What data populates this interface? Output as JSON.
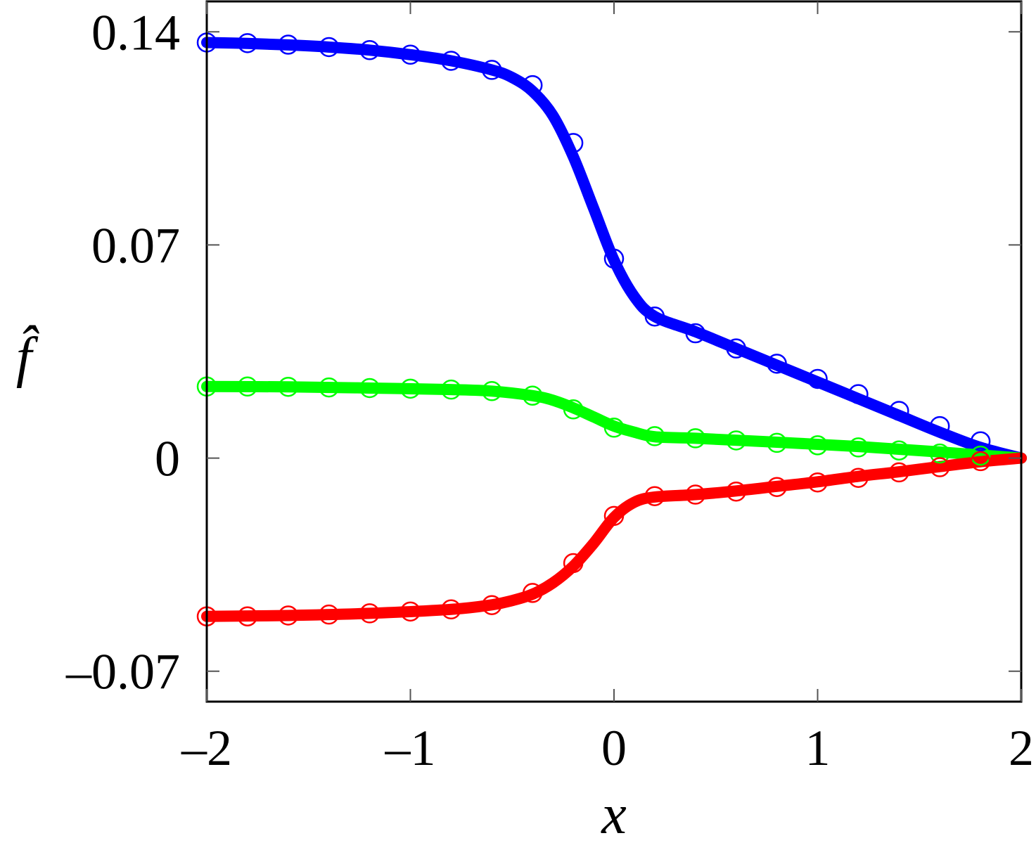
{
  "chart_data": {
    "type": "line",
    "xlabel": "x",
    "ylabel": "f̂",
    "xlim": [
      -2,
      2
    ],
    "ylim": [
      -0.08,
      0.15
    ],
    "xticks": [
      -2,
      -1,
      0,
      1,
      2
    ],
    "xtick_labels": [
      "–2",
      "–1",
      "0",
      "1",
      "2"
    ],
    "yticks": [
      -0.07,
      0,
      0.07,
      0.14
    ],
    "ytick_labels": [
      "–0.07",
      "0",
      "0.07",
      "0.14"
    ],
    "grid": false,
    "legend": "none",
    "series": [
      {
        "color": "#0000ff",
        "line_x": [
          -2.0,
          -1.8,
          -1.6,
          -1.4,
          -1.2,
          -1.0,
          -0.8,
          -0.6,
          -0.5,
          -0.4,
          -0.3,
          -0.2,
          -0.1,
          0.0,
          0.1,
          0.2,
          0.4,
          0.6,
          0.8,
          1.0,
          1.2,
          1.4,
          1.6,
          1.8,
          2.0
        ],
        "line_y": [
          0.1365,
          0.1362,
          0.1357,
          0.135,
          0.134,
          0.1325,
          0.1305,
          0.1275,
          0.125,
          0.1205,
          0.1125,
          0.099,
          0.082,
          0.065,
          0.053,
          0.0465,
          0.0415,
          0.036,
          0.0305,
          0.025,
          0.0195,
          0.014,
          0.0085,
          0.0035,
          0.0
        ],
        "x": [
          -2.0,
          -1.8,
          -1.6,
          -1.4,
          -1.2,
          -1.0,
          -0.8,
          -0.6,
          -0.4,
          -0.2,
          0.0,
          0.2,
          0.4,
          0.6,
          0.8,
          1.0,
          1.2,
          1.4,
          1.6,
          1.8
        ],
        "y": [
          0.1365,
          0.1363,
          0.1358,
          0.135,
          0.134,
          0.1325,
          0.1305,
          0.1275,
          0.1225,
          0.1035,
          0.0655,
          0.0465,
          0.041,
          0.036,
          0.031,
          0.026,
          0.021,
          0.0155,
          0.0105,
          0.0055
        ]
      },
      {
        "color": "#00ff00",
        "line_x": [
          -2.0,
          -1.6,
          -1.2,
          -0.8,
          -0.6,
          -0.4,
          -0.3,
          -0.2,
          -0.1,
          0.0,
          0.1,
          0.2,
          0.4,
          0.8,
          1.2,
          1.6,
          2.0
        ],
        "line_y": [
          0.0235,
          0.0234,
          0.023,
          0.0225,
          0.022,
          0.0205,
          0.019,
          0.0165,
          0.0135,
          0.0105,
          0.0085,
          0.007,
          0.0065,
          0.0052,
          0.0038,
          0.002,
          0.0
        ],
        "x": [
          -2.0,
          -1.8,
          -1.6,
          -1.4,
          -1.2,
          -1.0,
          -0.8,
          -0.6,
          -0.4,
          -0.2,
          0.0,
          0.2,
          0.4,
          0.6,
          0.8,
          1.0,
          1.2,
          1.4,
          1.6,
          1.8
        ],
        "y": [
          0.0235,
          0.0235,
          0.0234,
          0.0232,
          0.023,
          0.0228,
          0.0225,
          0.022,
          0.0205,
          0.016,
          0.01,
          0.0072,
          0.0065,
          0.0058,
          0.005,
          0.0042,
          0.0035,
          0.0025,
          0.0015,
          0.0008
        ]
      },
      {
        "color": "#ff0000",
        "line_x": [
          -2.0,
          -1.6,
          -1.2,
          -0.8,
          -0.6,
          -0.5,
          -0.4,
          -0.3,
          -0.2,
          -0.1,
          0.0,
          0.1,
          0.2,
          0.4,
          0.6,
          0.8,
          1.0,
          1.2,
          1.4,
          1.6,
          1.8,
          2.0
        ],
        "line_y": [
          -0.052,
          -0.0517,
          -0.051,
          -0.0497,
          -0.0482,
          -0.0468,
          -0.0447,
          -0.041,
          -0.0355,
          -0.028,
          -0.0195,
          -0.0145,
          -0.0128,
          -0.012,
          -0.0108,
          -0.0093,
          -0.0078,
          -0.006,
          -0.0045,
          -0.0028,
          -0.0012,
          0.0
        ],
        "x": [
          -2.0,
          -1.8,
          -1.6,
          -1.4,
          -1.2,
          -1.0,
          -0.8,
          -0.6,
          -0.4,
          -0.2,
          0.0,
          0.2,
          0.4,
          0.6,
          0.8,
          1.0,
          1.2,
          1.4,
          1.6,
          1.8
        ],
        "y": [
          -0.052,
          -0.052,
          -0.0517,
          -0.0514,
          -0.051,
          -0.0504,
          -0.0497,
          -0.0483,
          -0.0443,
          -0.0345,
          -0.019,
          -0.0125,
          -0.012,
          -0.011,
          -0.0095,
          -0.008,
          -0.0065,
          -0.0047,
          -0.003,
          -0.001
        ]
      }
    ]
  }
}
